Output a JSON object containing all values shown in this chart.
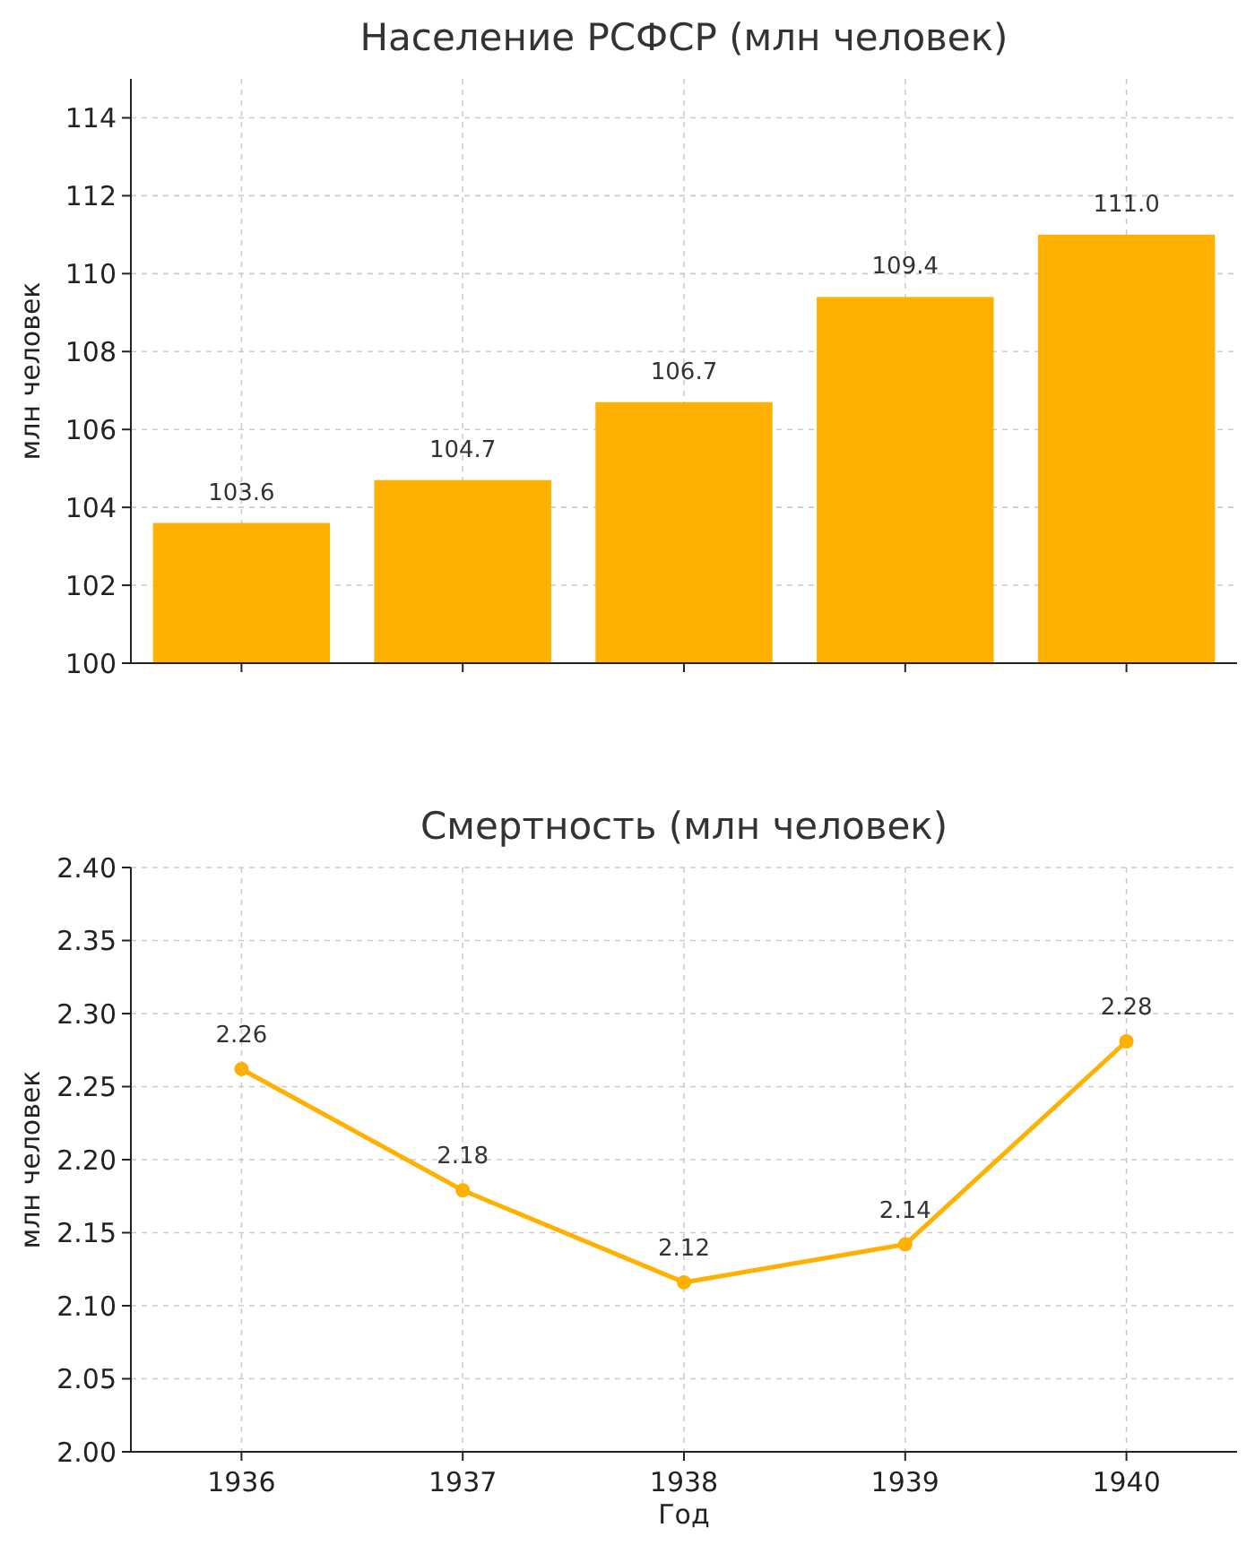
{
  "chart_data": [
    {
      "type": "bar",
      "title": "Население РСФСР (млн человек)",
      "ylabel": "млн человек",
      "categories": [
        "1936",
        "1937",
        "1938",
        "1939",
        "1940"
      ],
      "values": [
        103.6,
        104.7,
        106.7,
        109.4,
        111.0
      ],
      "value_labels": [
        "103.6",
        "104.7",
        "106.7",
        "109.4",
        "111.0"
      ],
      "color": "#ffb000",
      "ylim": [
        100,
        115
      ],
      "yticks": [
        100,
        102,
        104,
        106,
        108,
        110,
        112,
        114
      ],
      "grid": true,
      "tick_labels": "y"
    },
    {
      "type": "line",
      "title": "Смертность (млн человек)",
      "xlabel": "Год",
      "ylabel": "млн человек",
      "categories": [
        "1936",
        "1937",
        "1938",
        "1939",
        "1940"
      ],
      "values": [
        2.262,
        2.179,
        2.116,
        2.142,
        2.281
      ],
      "value_labels": [
        "2.26",
        "2.18",
        "2.12",
        "2.14",
        "2.28"
      ],
      "color": "#ffb000",
      "marker": "circle",
      "line_style": "solid",
      "ylim": [
        2.0,
        2.4
      ],
      "yticks": [
        {
          "value": 2.0,
          "label": "2.00"
        },
        {
          "value": 2.05,
          "label": "2.05"
        },
        {
          "value": 2.1,
          "label": "2.10"
        },
        {
          "value": 2.15,
          "label": "2.15"
        },
        {
          "value": 2.2,
          "label": "2.20"
        },
        {
          "value": 2.25,
          "label": "2.25"
        },
        {
          "value": 2.3,
          "label": "2.30"
        },
        {
          "value": 2.35,
          "label": "2.35"
        },
        {
          "value": 2.4,
          "label": "2.40"
        }
      ],
      "grid": true
    }
  ]
}
